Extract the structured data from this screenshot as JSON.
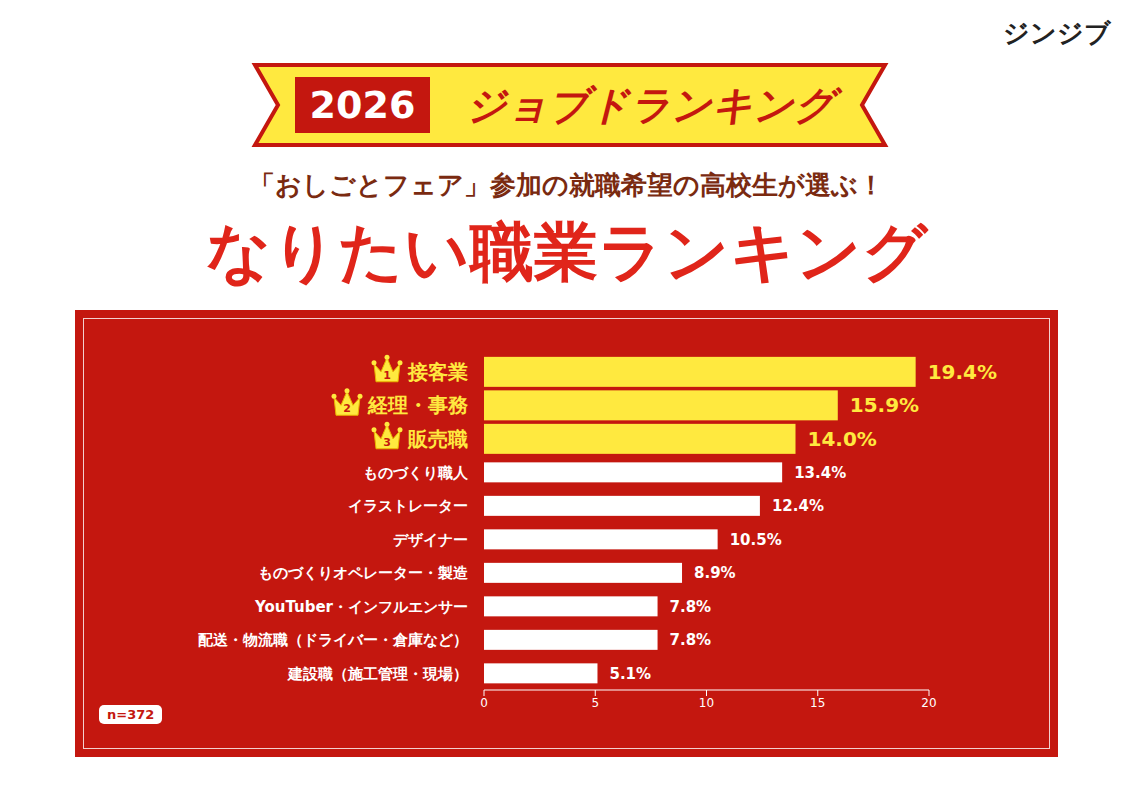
{
  "header": {
    "brand": "ジンジブ",
    "year": "2026",
    "banner": "ジョブドランキング"
  },
  "chart_data": {
    "type": "bar",
    "orientation": "horizontal",
    "title": "なりたい職業ランキング",
    "subtitle": "「おしごとフェア」参加の就職希望の高校生が選ぶ！",
    "categories": [
      "接客業",
      "経理・事務",
      "販売職",
      "ものづくり職人",
      "イラストレーター",
      "デザイナー",
      "ものづくりオペレーター・製造",
      "YouTuber・インフルエンサー",
      "配送・物流職（ドライバー・倉庫など）",
      "建設職（施工管理・現場）"
    ],
    "values": [
      19.4,
      15.9,
      14.0,
      13.4,
      12.4,
      10.5,
      8.9,
      7.8,
      7.8,
      5.1
    ],
    "value_labels": [
      "19.4%",
      "15.9%",
      "14.0%",
      "13.4%",
      "12.4%",
      "10.5%",
      "8.9%",
      "7.8%",
      "7.8%",
      "5.1%"
    ],
    "ranks": [
      1,
      2,
      3,
      null,
      null,
      null,
      null,
      null,
      null,
      null
    ],
    "colors": [
      "#ffe93f",
      "#ffe93f",
      "#ffe93f",
      "#ffffff",
      "#ffffff",
      "#ffffff",
      "#ffffff",
      "#ffffff",
      "#ffffff",
      "#ffffff"
    ],
    "xlim": [
      0,
      20
    ],
    "xticks": [
      0,
      5,
      10,
      15,
      20
    ],
    "grid": false,
    "data_labels": true,
    "annotations": [
      "n=372"
    ]
  }
}
